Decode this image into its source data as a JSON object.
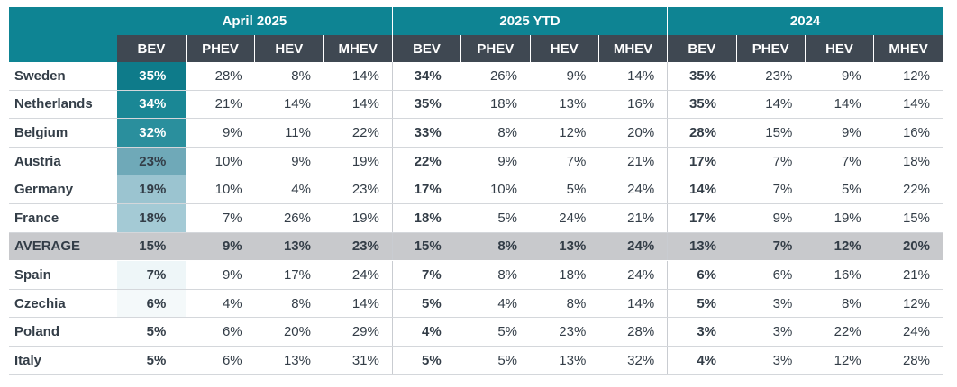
{
  "groups": [
    "April 2025",
    "2025 YTD",
    "2024"
  ],
  "columns": [
    "BEV",
    "PHEV",
    "HEV",
    "MHEV"
  ],
  "colors": {
    "header_group_bg": "#0e8493",
    "header_col_bg": "#3f4852",
    "average_row_bg": "#c8c9cc",
    "bev_heat": [
      "#0e7b8a",
      "#1a8795",
      "#2a8f9d",
      "#6fa9b8",
      "#9bc4d0",
      "#a4cad5",
      "#c8c9cc",
      "#eef6f8",
      "#f4f9fa",
      "#ffffff",
      "#ffffff"
    ],
    "bev_text": [
      "#ffffff",
      "#ffffff",
      "#ffffff",
      "#333d47",
      "#333d47",
      "#333d47",
      "#333d47",
      "#333d47",
      "#333d47",
      "#333d47",
      "#333d47"
    ]
  },
  "rows": [
    {
      "country": "Sweden",
      "april": [
        "35%",
        "28%",
        "8%",
        "14%"
      ],
      "ytd": [
        "34%",
        "26%",
        "9%",
        "14%"
      ],
      "y2024": [
        "35%",
        "23%",
        "9%",
        "12%"
      ]
    },
    {
      "country": "Netherlands",
      "april": [
        "34%",
        "21%",
        "14%",
        "14%"
      ],
      "ytd": [
        "35%",
        "18%",
        "13%",
        "16%"
      ],
      "y2024": [
        "35%",
        "14%",
        "14%",
        "14%"
      ]
    },
    {
      "country": "Belgium",
      "april": [
        "32%",
        "9%",
        "11%",
        "22%"
      ],
      "ytd": [
        "33%",
        "8%",
        "12%",
        "20%"
      ],
      "y2024": [
        "28%",
        "15%",
        "9%",
        "16%"
      ]
    },
    {
      "country": "Austria",
      "april": [
        "23%",
        "10%",
        "9%",
        "19%"
      ],
      "ytd": [
        "22%",
        "9%",
        "7%",
        "21%"
      ],
      "y2024": [
        "17%",
        "7%",
        "7%",
        "18%"
      ]
    },
    {
      "country": "Germany",
      "april": [
        "19%",
        "10%",
        "4%",
        "23%"
      ],
      "ytd": [
        "17%",
        "10%",
        "5%",
        "24%"
      ],
      "y2024": [
        "14%",
        "7%",
        "5%",
        "22%"
      ]
    },
    {
      "country": "France",
      "april": [
        "18%",
        "7%",
        "26%",
        "19%"
      ],
      "ytd": [
        "18%",
        "5%",
        "24%",
        "21%"
      ],
      "y2024": [
        "17%",
        "9%",
        "19%",
        "15%"
      ]
    },
    {
      "country": "AVERAGE",
      "april": [
        "15%",
        "9%",
        "13%",
        "23%"
      ],
      "ytd": [
        "15%",
        "8%",
        "13%",
        "24%"
      ],
      "y2024": [
        "13%",
        "7%",
        "12%",
        "20%"
      ]
    },
    {
      "country": "Spain",
      "april": [
        "7%",
        "9%",
        "17%",
        "24%"
      ],
      "ytd": [
        "7%",
        "8%",
        "18%",
        "24%"
      ],
      "y2024": [
        "6%",
        "6%",
        "16%",
        "21%"
      ]
    },
    {
      "country": "Czechia",
      "april": [
        "6%",
        "4%",
        "8%",
        "14%"
      ],
      "ytd": [
        "5%",
        "4%",
        "8%",
        "14%"
      ],
      "y2024": [
        "5%",
        "3%",
        "8%",
        "12%"
      ]
    },
    {
      "country": "Poland",
      "april": [
        "5%",
        "6%",
        "20%",
        "29%"
      ],
      "ytd": [
        "4%",
        "5%",
        "23%",
        "28%"
      ],
      "y2024": [
        "3%",
        "3%",
        "22%",
        "24%"
      ]
    },
    {
      "country": "Italy",
      "april": [
        "5%",
        "6%",
        "13%",
        "31%"
      ],
      "ytd": [
        "5%",
        "5%",
        "13%",
        "32%"
      ],
      "y2024": [
        "4%",
        "3%",
        "12%",
        "28%"
      ]
    }
  ]
}
